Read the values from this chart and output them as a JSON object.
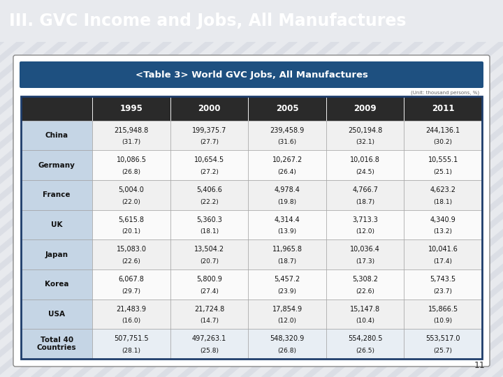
{
  "title": "III. GVC Income and Jobs, All Manufactures",
  "subtitle": "<Table 3> World GVC Jobs, All Manufactures",
  "title_bg": "#1e3d6b",
  "subtitle_bg": "#1e5080",
  "header_bg": "#2a2a2a",
  "header_text": "#ffffff",
  "row_label_bg": "#c5d5e5",
  "row_data_bg_odd": "#f0f0f0",
  "row_data_bg_even": "#fafafa",
  "total_row_label_bg": "#c5d5e5",
  "total_row_data_bg": "#e8eef4",
  "outer_bg": "#c8cdd8",
  "content_bg": "#e8eaee",
  "white_box_bg": "#ffffff",
  "table_outer_border": "#1e3d6b",
  "unit_text": "(Unit: thousand persons, %)",
  "page_num": "11",
  "columns": [
    "1995",
    "2000",
    "2005",
    "2009",
    "2011"
  ],
  "rows": [
    {
      "label": "China",
      "values": [
        "215,948.8",
        "199,375.7",
        "239,458.9",
        "250,194.8",
        "244,136.1"
      ],
      "pct": [
        "(31.7)",
        "(27.7)",
        "(31.6)",
        "(32.1)",
        "(30.2)"
      ]
    },
    {
      "label": "Germany",
      "values": [
        "10,086.5",
        "10,654.5",
        "10,267.2",
        "10,016.8",
        "10,555.1"
      ],
      "pct": [
        "(26.8)",
        "(27.2)",
        "(26.4)",
        "(24.5)",
        "(25.1)"
      ]
    },
    {
      "label": "France",
      "values": [
        "5,004.0",
        "5,406.6",
        "4,978.4",
        "4,766.7",
        "4,623.2"
      ],
      "pct": [
        "(22.0)",
        "(22.2)",
        "(19.8)",
        "(18.7)",
        "(18.1)"
      ]
    },
    {
      "label": "UK",
      "values": [
        "5,615.8",
        "5,360.3",
        "4,314.4",
        "3,713.3",
        "4,340.9"
      ],
      "pct": [
        "(20.1)",
        "(18.1)",
        "(13.9)",
        "(12.0)",
        "(13.2)"
      ]
    },
    {
      "label": "Japan",
      "values": [
        "15,083.0",
        "13,504.2",
        "11,965.8",
        "10,036.4",
        "10,041.6"
      ],
      "pct": [
        "(22.6)",
        "(20.7)",
        "(18.7)",
        "(17.3)",
        "(17.4)"
      ]
    },
    {
      "label": "Korea",
      "values": [
        "6,067.8",
        "5,800.9",
        "5,457.2",
        "5,308.2",
        "5,743.5"
      ],
      "pct": [
        "(29.7)",
        "(27.4)",
        "(23.9)",
        "(22.6)",
        "(23.7)"
      ]
    },
    {
      "label": "USA",
      "values": [
        "21,483.9",
        "21,724.8",
        "17,854.9",
        "15,147.8",
        "15,866.5"
      ],
      "pct": [
        "(16.0)",
        "(14.7)",
        "(12.0)",
        "(10.4)",
        "(10.9)"
      ]
    },
    {
      "label": "Total 40\nCountries",
      "values": [
        "507,751.5",
        "497,263.1",
        "548,320.9",
        "554,280.5",
        "553,517.0"
      ],
      "pct": [
        "(28.1)",
        "(25.8)",
        "(26.8)",
        "(26.5)",
        "(25.7)"
      ]
    }
  ]
}
